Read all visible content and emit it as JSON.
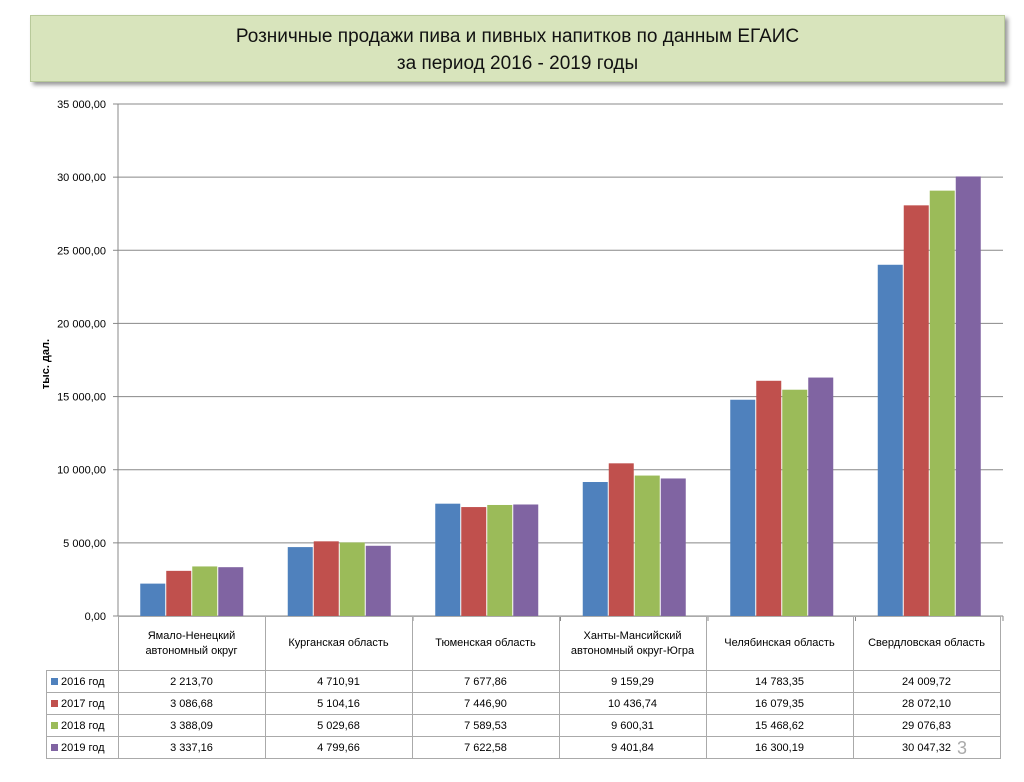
{
  "title_line1": "Розничные продажи пива и пивных напитков по данным ЕГАИС",
  "title_line2": "за период 2016 - 2019 годы",
  "page_number": "3",
  "chart_data": {
    "type": "bar",
    "title": "Розничные продажи пива и пивных напитков по данным ЕГАИС за период 2016 - 2019 годы",
    "ylabel": "тыс. дал.",
    "xlabel": "",
    "ylim": [
      0,
      35000
    ],
    "yticks": [
      "0,00",
      "5 000,00",
      "10 000,00",
      "15 000,00",
      "20 000,00",
      "25 000,00",
      "30 000,00",
      "35 000,00"
    ],
    "grid": true,
    "legend": "data-table",
    "categories": [
      "Ямало-Ненецкий автономный округ",
      "Курганская область",
      "Тюменская область",
      "Ханты-Мансийский автономный округ-Югра",
      "Челябинская область",
      "Свердловская область"
    ],
    "series": [
      {
        "name": "2016 год",
        "color": "#4f81bd",
        "values": [
          2213.7,
          4710.91,
          7677.86,
          9159.29,
          14783.35,
          24009.72
        ],
        "labels": [
          "2 213,70",
          "4 710,91",
          "7 677,86",
          "9 159,29",
          "14 783,35",
          "24 009,72"
        ]
      },
      {
        "name": "2017 год",
        "color": "#c0504d",
        "values": [
          3086.68,
          5104.16,
          7446.9,
          10436.74,
          16079.35,
          28072.1
        ],
        "labels": [
          "3 086,68",
          "5 104,16",
          "7 446,90",
          "10 436,74",
          "16 079,35",
          "28 072,10"
        ]
      },
      {
        "name": "2018 год",
        "color": "#9bbb59",
        "values": [
          3388.09,
          5029.68,
          7589.53,
          9600.31,
          15468.62,
          29076.83
        ],
        "labels": [
          "3 388,09",
          "5 029,68",
          "7 589,53",
          "9 600,31",
          "15 468,62",
          "29 076,83"
        ]
      },
      {
        "name": "2019 год",
        "color": "#8064a2",
        "values": [
          3337.16,
          4799.66,
          7622.58,
          9401.84,
          16300.19,
          30047.32
        ],
        "labels": [
          "3 337,16",
          "4 799,66",
          "7 622,58",
          "9 401,84",
          "16 300,19",
          "30 047,32"
        ]
      }
    ]
  }
}
